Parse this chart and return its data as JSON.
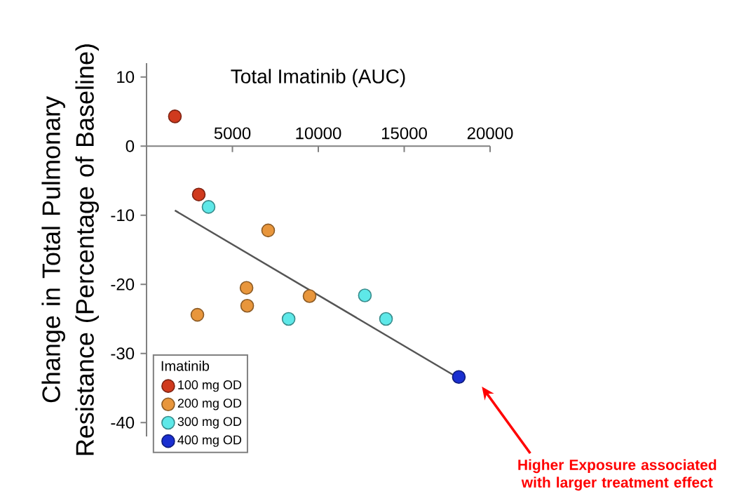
{
  "chart_data": {
    "type": "scatter",
    "xlabel": "Total Imatinib (AUC)",
    "ylabel": "Change in Total Pulmonary Resistance (Percentage of Baseline)",
    "legend_title": "Imatinib",
    "legend": "bottom left",
    "marker": "circle",
    "grid": false,
    "xlim": [
      0,
      20000
    ],
    "xticks": [
      5000,
      10000,
      15000,
      20000
    ],
    "ylim": [
      -42,
      12
    ],
    "yticks": [
      -40,
      -30,
      -20,
      -10,
      0,
      10
    ],
    "series": [
      {
        "name": "100 mg OD",
        "color": "#d03a1e",
        "x": [
          1650,
          3040
        ],
        "values": [
          4.3,
          -7.0
        ]
      },
      {
        "name": "200 mg OD",
        "color": "#e8963c",
        "x": [
          7080,
          5820,
          5860,
          2960,
          9490
        ],
        "values": [
          -12.2,
          -20.5,
          -23.1,
          -24.4,
          -21.7
        ]
      },
      {
        "name": "300 mg OD",
        "color": "#5ee8e8",
        "x": [
          3610,
          8270,
          12710,
          13940
        ],
        "values": [
          -8.8,
          -25.0,
          -21.6,
          -25.0
        ]
      },
      {
        "name": "400 mg OD",
        "color": "#1a2fd0",
        "x": [
          18180
        ],
        "values": [
          -33.4
        ]
      },
      {
        "type": "line",
        "color": "#555555",
        "marker": "none",
        "x": [
          1650,
          17920
        ],
        "values": [
          -9.3,
          -33.2
        ]
      }
    ],
    "annotations": [
      "Higher Exposure associated with larger treatment effect"
    ]
  }
}
